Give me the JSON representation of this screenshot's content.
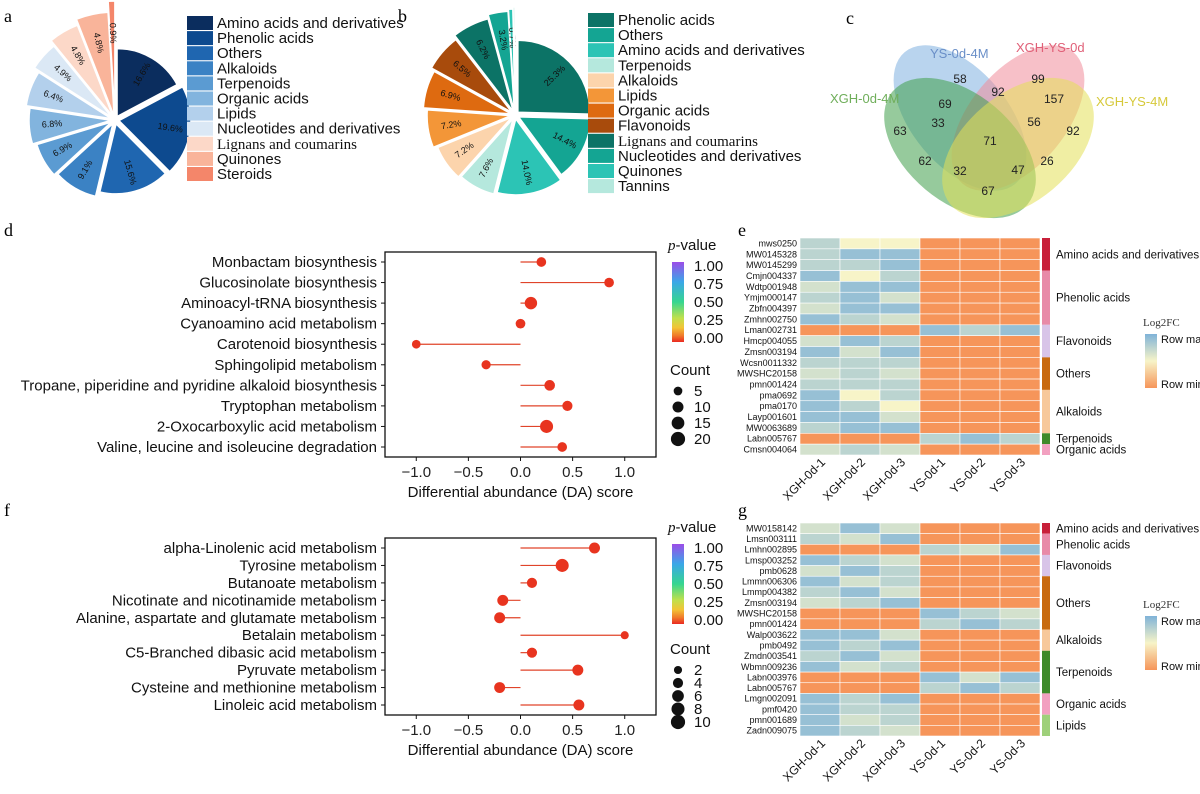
{
  "colors": {
    "dark": "#0b2d5e",
    "blue1": "#0d4a8f",
    "blue2": "#1f66b0",
    "blue3": "#3b82c4",
    "blue4": "#5b9bd2",
    "blue5": "#82b4de",
    "blue6": "#b3d0ec",
    "blue7": "#dbe8f5",
    "peach1": "#fcd8c8",
    "peach2": "#f9b49a",
    "peach3": "#f4866a",
    "teal1": "#0c7366",
    "teal2": "#14a593",
    "teal3": "#2cc4b5",
    "teal4": "#b5e8dd",
    "orange1": "#fcd4ac",
    "orange2": "#f39638",
    "orange3": "#de6a10",
    "orange4": "#a84b0c",
    "hm_high": "#7fb3d8",
    "hm_mid": "#f7f4c8",
    "hm_low": "#f6955a",
    "venn_ys0": "#7fb1e0",
    "venn_xgh0": "#3f9e4a",
    "venn_xgh_ys0": "#f08c9a",
    "venn_xgh_ys4": "#e4e058"
  },
  "labels": {
    "a": "a",
    "b": "b",
    "c": "c",
    "d": "d",
    "e": "e",
    "f": "f",
    "g": "g"
  },
  "chart_data": [
    {
      "id": "a",
      "type": "pie",
      "categories": [
        "Amino acids and derivatives",
        "Phenolic acids",
        "Others",
        "Alkaloids",
        "Terpenoids",
        "Organic acids",
        "Lipids",
        "Nucleotides and derivatives",
        "Lignans and coumarins",
        "Quinones",
        "Steroids"
      ],
      "values": [
        16.6,
        19.6,
        15.6,
        9.1,
        6.9,
        6.8,
        6.4,
        4.9,
        4.8,
        4.8,
        0.9
      ],
      "value_labels": [
        "16.6%",
        "19.6%",
        "15.6%",
        "9.1%",
        "6.9%",
        "6.8%",
        "6.4%",
        "4.9%",
        "4.8%",
        "4.8%",
        "0.9%"
      ],
      "colors": [
        "#0b2d5e",
        "#0d4a8f",
        "#1f66b0",
        "#3b82c4",
        "#5b9bd2",
        "#82b4de",
        "#b3d0ec",
        "#dbe8f5",
        "#fcd8c8",
        "#f9b49a",
        "#f4866a"
      ]
    },
    {
      "id": "b",
      "type": "pie",
      "categories": [
        "Phenolic acids",
        "Others",
        "Amino acids and derivatives",
        "Terpenoids",
        "Alkaloids",
        "Lipids",
        "Organic acids",
        "Flavonoids",
        "Lignans and coumarins",
        "Nucleotides and derivatives",
        "Quinones",
        "Tannins"
      ],
      "values": [
        25.3,
        14.4,
        14.0,
        7.6,
        7.2,
        7.2,
        6.9,
        6.5,
        6.2,
        3.2,
        0.7,
        0.3
      ],
      "value_labels": [
        "25.3%",
        "14.4%",
        "14.0%",
        "7.6%",
        "7.2%",
        "7.2%",
        "6.9%",
        "6.5%",
        "6.2%",
        "3.2%",
        "0.7%",
        ""
      ],
      "colors": [
        "#0c7366",
        "#14a593",
        "#2cc4b5",
        "#b5e8dd",
        "#fcd4ac",
        "#f39638",
        "#de6a10",
        "#a84b0c",
        "#0c7366",
        "#14a593",
        "#2cc4b5",
        "#b5e8dd"
      ]
    },
    {
      "id": "c",
      "type": "venn",
      "sets": [
        "YS-0d-4M",
        "XGH-YS-0d",
        "XGH-0d-4M",
        "XGH-YS-4M"
      ],
      "region_counts": [
        58,
        99,
        63,
        92,
        69,
        92,
        157,
        33,
        56,
        71,
        62,
        26,
        32,
        47,
        67
      ]
    },
    {
      "id": "d",
      "type": "lollipop",
      "title": "",
      "xlabel": "Differential abundance (DA) score",
      "xlim": [
        -1.3,
        1.3
      ],
      "xticks": [
        -1.0,
        -0.5,
        0.0,
        0.5,
        1.0
      ],
      "xtick_labels": [
        "−1.0",
        "−0.5",
        "0.0",
        "0.5",
        "1.0"
      ],
      "categories": [
        "Monbactam biosynthesis",
        "Glucosinolate biosynthesis",
        "Aminoacyl-tRNA biosynthesis",
        "Cyanoamino acid metabolism",
        "Carotenoid biosynthesis",
        "Sphingolipid metabolism",
        "Tropane, piperidine and pyridine alkaloid biosynthesis",
        "Tryptophan metabolism",
        "2-Oxocarboxylic acid metabolism",
        "Valine, leucine and isoleucine degradation"
      ],
      "values": [
        0.2,
        0.85,
        0.1,
        0.0,
        -1.0,
        -0.33,
        0.28,
        0.45,
        0.25,
        0.4
      ],
      "counts": [
        7,
        7,
        14,
        7,
        5,
        6,
        9,
        8,
        16,
        7
      ],
      "pvalue_legend": {
        "title_p": "p",
        "title_rest": "-value",
        "ticks": [
          "1.00",
          "0.75",
          "0.50",
          "0.25",
          "0.00"
        ]
      },
      "count_legend": {
        "title": "Count",
        "values": [
          5,
          10,
          15,
          20
        ],
        "labels": [
          "5",
          "10",
          "15",
          "20"
        ]
      }
    },
    {
      "id": "f",
      "type": "lollipop",
      "title": "",
      "xlabel": "Differential abundance (DA) score",
      "xlim": [
        -1.3,
        1.3
      ],
      "xticks": [
        -1.0,
        -0.5,
        0.0,
        0.5,
        1.0
      ],
      "xtick_labels": [
        "−1.0",
        "−0.5",
        "0.0",
        "0.5",
        "1.0"
      ],
      "categories": [
        "alpha-Linolenic acid metabolism",
        "Tyrosine metabolism",
        "Butanoate metabolism",
        "Nicotinate and nicotinamide metabolism",
        "Alanine, aspartate and glutamate metabolism",
        "Betalain metabolism",
        "C5-Branched dibasic acid metabolism",
        "Pyruvate metabolism",
        "Cysteine and methionine metabolism",
        "Linoleic acid metabolism"
      ],
      "values": [
        0.71,
        0.4,
        0.11,
        -0.17,
        -0.2,
        1.0,
        0.11,
        0.55,
        -0.2,
        0.56
      ],
      "counts": [
        5,
        8,
        4,
        5,
        5,
        2,
        4,
        5,
        5,
        5
      ],
      "pvalue_legend": {
        "title_p": "p",
        "title_rest": "-value",
        "ticks": [
          "1.00",
          "0.75",
          "0.50",
          "0.25",
          "0.00"
        ]
      },
      "count_legend": {
        "title": "Count",
        "values": [
          2,
          4,
          6,
          8,
          10
        ],
        "labels": [
          "2",
          "4",
          "6",
          "8",
          "10"
        ]
      }
    },
    {
      "id": "e",
      "type": "heatmap",
      "columns": [
        "XGH-0d-1",
        "XGH-0d-2",
        "XGH-0d-3",
        "YS-0d-1",
        "YS-0d-2",
        "YS-0d-3"
      ],
      "rows": [
        "mws0250",
        "MW0145328",
        "MW0145299",
        "Cmjn004337",
        "Wdtp001948",
        "Ymjm000147",
        "Zbfn004397",
        "Zmhn002750",
        "Lman002731",
        "Hmcp004055",
        "Zmsn003194",
        "Wcsn0011332",
        "MWSHC20158",
        "pmn001424",
        "pma0692",
        "pma0170",
        "Layp001601",
        "MW0063689",
        "Labn005767",
        "Cmsn004064"
      ],
      "values": [
        [
          0.5,
          0.0,
          0.0,
          -1,
          -1,
          -1
        ],
        [
          0.5,
          0.8,
          0.8,
          -1,
          -1,
          -1
        ],
        [
          0.5,
          0.5,
          0.8,
          -1,
          -1,
          -1
        ],
        [
          0.8,
          0.0,
          0.5,
          -1,
          -1,
          -1
        ],
        [
          0.3,
          0.8,
          0.8,
          -1,
          -1,
          -1
        ],
        [
          0.5,
          0.8,
          0.3,
          -1,
          -1,
          -1
        ],
        [
          0.3,
          0.8,
          0.8,
          -1,
          -1,
          -1
        ],
        [
          0.8,
          0.5,
          0.3,
          -1,
          -1,
          -1
        ],
        [
          -1,
          -1,
          -1,
          0.8,
          0.5,
          0.8
        ],
        [
          0.3,
          0.8,
          0.5,
          -1,
          -1,
          -1
        ],
        [
          0.8,
          0.3,
          0.8,
          -1,
          -1,
          -1
        ],
        [
          0.5,
          0.5,
          0.5,
          -1,
          -1,
          -1
        ],
        [
          0.3,
          0.5,
          0.3,
          -1,
          -1,
          -1
        ],
        [
          0.5,
          0.5,
          0.5,
          -1,
          -1,
          -1
        ],
        [
          0.8,
          0.0,
          0.5,
          -1,
          -1,
          -1
        ],
        [
          0.8,
          0.5,
          0.0,
          -1,
          -1,
          -1
        ],
        [
          0.8,
          0.8,
          0.3,
          -1,
          -1,
          -1
        ],
        [
          0.5,
          0.8,
          0.8,
          -1,
          -1,
          -1
        ],
        [
          -1,
          -1,
          -1,
          0.5,
          0.8,
          0.5
        ],
        [
          0.3,
          0.5,
          0.3,
          -1,
          -1,
          -1
        ]
      ],
      "groups": [
        {
          "label": "Amino acids and derivatives",
          "count": 3,
          "color": "#c8203a"
        },
        {
          "label": "Phenolic acids",
          "count": 5,
          "color": "#e88aa8"
        },
        {
          "label": "Flavonoids",
          "count": 3,
          "color": "#d8c4e8"
        },
        {
          "label": "Others",
          "count": 3,
          "color": "#c86a10"
        },
        {
          "label": "Alkaloids",
          "count": 4,
          "color": "#f7c89a"
        },
        {
          "label": "Terpenoids",
          "count": 1,
          "color": "#3f8a2a"
        },
        {
          "label": "Organic acids",
          "count": 1,
          "color": "#f2a0c0"
        }
      ],
      "legend": {
        "title": "Log2FC",
        "max": "Row max",
        "min": "Row min"
      }
    },
    {
      "id": "g",
      "type": "heatmap",
      "columns": [
        "XGH-0d-1",
        "XGH-0d-2",
        "XGH-0d-3",
        "YS-0d-1",
        "YS-0d-2",
        "YS-0d-3"
      ],
      "rows": [
        "MW0158142",
        "Lmsn003111",
        "Lmhn002895",
        "Lmsp003252",
        "pmb0628",
        "Lmmn006306",
        "Lmmp004382",
        "Zmsn003194",
        "MWSHC20158",
        "pmn001424",
        "Walp003622",
        "pmb0492",
        "Zmdn003541",
        "Wbmn009236",
        "Labn003976",
        "Labn005767",
        "Lmgn002091",
        "pmf0420",
        "pmn001689",
        "Zadn009075"
      ],
      "values": [
        [
          0.3,
          0.8,
          0.3,
          -1,
          -1,
          -1
        ],
        [
          0.5,
          0.3,
          0.8,
          -1,
          -1,
          -1
        ],
        [
          -1,
          -1,
          -1,
          0.5,
          0.3,
          0.8
        ],
        [
          0.8,
          0.5,
          0.3,
          -1,
          -1,
          -1
        ],
        [
          0.3,
          0.8,
          0.5,
          -1,
          -1,
          -1
        ],
        [
          0.8,
          0.3,
          0.5,
          -1,
          -1,
          -1
        ],
        [
          0.5,
          0.8,
          0.3,
          -1,
          -1,
          -1
        ],
        [
          0.3,
          0.5,
          0.8,
          -1,
          -1,
          -1
        ],
        [
          -1,
          -1,
          -1,
          0.8,
          0.5,
          0.3
        ],
        [
          -1,
          -1,
          -1,
          0.5,
          0.8,
          0.5
        ],
        [
          0.8,
          0.8,
          0.3,
          -1,
          -1,
          -1
        ],
        [
          0.8,
          0.5,
          0.8,
          -1,
          -1,
          -1
        ],
        [
          0.5,
          0.8,
          0.3,
          -1,
          -1,
          -1
        ],
        [
          0.8,
          0.3,
          0.5,
          -1,
          -1,
          -1
        ],
        [
          -1,
          -1,
          -1,
          0.8,
          0.3,
          0.8
        ],
        [
          -1,
          -1,
          -1,
          0.5,
          0.8,
          0.5
        ],
        [
          0.8,
          0.5,
          0.8,
          -1,
          -1,
          -1
        ],
        [
          0.8,
          0.5,
          0.5,
          -1,
          -1,
          -1
        ],
        [
          0.8,
          0.3,
          0.5,
          -1,
          -1,
          -1
        ],
        [
          0.8,
          0.5,
          0.3,
          -1,
          -1,
          -1
        ]
      ],
      "groups": [
        {
          "label": "Amino acids and derivatives",
          "count": 1,
          "color": "#c8203a"
        },
        {
          "label": "Phenolic acids",
          "count": 2,
          "color": "#e88aa8"
        },
        {
          "label": "Flavonoids",
          "count": 2,
          "color": "#d8c4e8"
        },
        {
          "label": "Others",
          "count": 5,
          "color": "#c86a10"
        },
        {
          "label": "Alkaloids",
          "count": 2,
          "color": "#f7c89a"
        },
        {
          "label": "Terpenoids",
          "count": 4,
          "color": "#3f8a2a"
        },
        {
          "label": "Organic acids",
          "count": 2,
          "color": "#f2a0c0"
        },
        {
          "label": "Lipids",
          "count": 2,
          "color": "#9ed07a"
        }
      ],
      "legend": {
        "title": "Log2FC",
        "max": "Row max",
        "min": "Row min"
      }
    }
  ]
}
